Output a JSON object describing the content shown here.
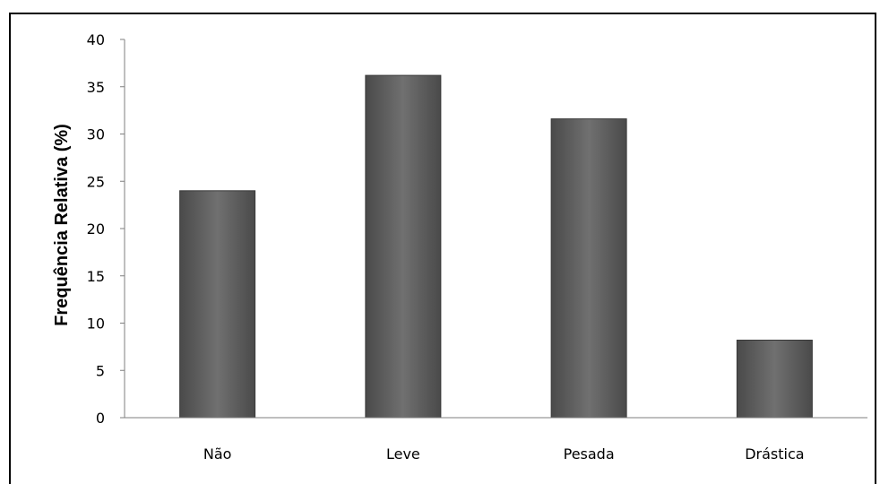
{
  "chart_data": {
    "type": "bar",
    "title": "",
    "xlabel": "",
    "ylabel": "Frequência Relativa (%)",
    "categories": [
      "Não",
      "Leve",
      "Pesada",
      "Drástica"
    ],
    "values": [
      24.0,
      36.2,
      31.6,
      8.2
    ],
    "ylim": [
      0,
      40
    ],
    "yticks": [
      0,
      5,
      10,
      15,
      20,
      25,
      30,
      35,
      40
    ],
    "grid": false,
    "legend": "none",
    "colors": {
      "bar_fill": "#5c5c5c",
      "bar_light": "#7a7a7a",
      "bar_edge": "#3a3a3a",
      "axis": "#7f7f7f"
    }
  }
}
